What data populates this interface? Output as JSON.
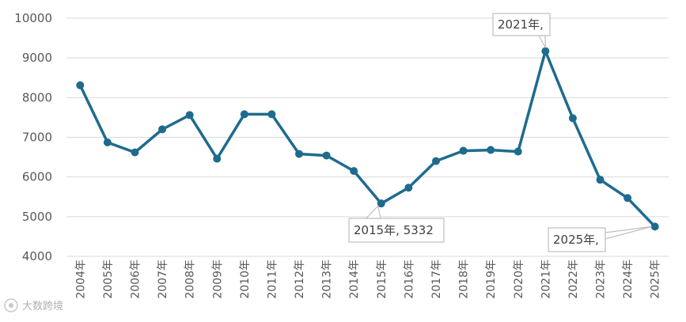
{
  "chart_data": {
    "type": "line",
    "title": "",
    "xlabel": "",
    "ylabel": "",
    "categories": [
      "2004年",
      "2005年",
      "2006年",
      "2007年",
      "2008年",
      "2009年",
      "2010年",
      "2011年",
      "2012年",
      "2013年",
      "2014年",
      "2015年",
      "2016年",
      "2017年",
      "2018年",
      "2019年",
      "2020年",
      "2021年",
      "2022年",
      "2023年",
      "2024年",
      "2025年"
    ],
    "series": [
      {
        "values": [
          8310,
          6870,
          6620,
          7200,
          7560,
          6460,
          7580,
          7580,
          6580,
          6540,
          6150,
          5332,
          5730,
          6400,
          6660,
          6680,
          6640,
          9170,
          7480,
          5930,
          5470,
          4750
        ]
      }
    ],
    "ylim": [
      4000,
      10000
    ],
    "yticks": [
      "4000",
      "5000",
      "6000",
      "7000",
      "8000",
      "9000",
      "10000"
    ],
    "grid": true,
    "legend": "none",
    "colors": {
      "line": "#1f6b8e",
      "grid": "#d9d9d9",
      "axis_text": "#595959",
      "callout_border": "#bfbfbf"
    },
    "annotations": [
      {
        "index": 17,
        "text": "2021年,"
      },
      {
        "index": 11,
        "text": "2015年, 5332"
      },
      {
        "index": 21,
        "text": "2025年,"
      }
    ],
    "watermark": "大数跨境"
  }
}
